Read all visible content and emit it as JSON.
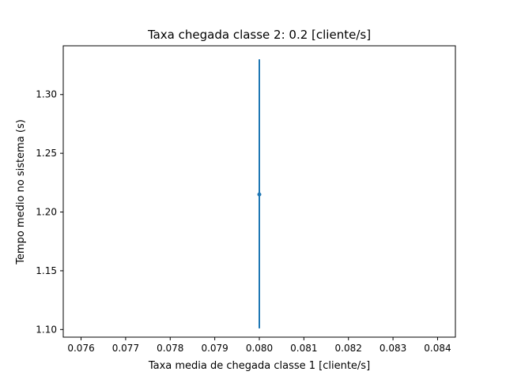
{
  "chart_data": {
    "type": "scatter",
    "title": "Taxa chegada classe 2: 0.2 [cliente/s]",
    "xlabel": "Taxa media de chegada classe 1 [cliente/s]",
    "ylabel": "Tempo medio no sistema (s)",
    "xlim": [
      0.0756,
      0.0844
    ],
    "ylim": [
      1.0935,
      1.3415
    ],
    "xticks": [
      0.076,
      0.077,
      0.078,
      0.079,
      0.08,
      0.081,
      0.082,
      0.083,
      0.084
    ],
    "xtick_labels": [
      "0.076",
      "0.077",
      "0.078",
      "0.079",
      "0.080",
      "0.081",
      "0.082",
      "0.083",
      "0.084"
    ],
    "yticks": [
      1.1,
      1.15,
      1.2,
      1.25,
      1.3
    ],
    "ytick_labels": [
      "1.10",
      "1.15",
      "1.20",
      "1.25",
      "1.30"
    ],
    "grid": false,
    "series": [
      {
        "color": "#1f77b4",
        "points": [
          {
            "x": 0.08,
            "y": 1.215,
            "y_low": 1.101,
            "y_high": 1.33
          }
        ]
      }
    ]
  }
}
